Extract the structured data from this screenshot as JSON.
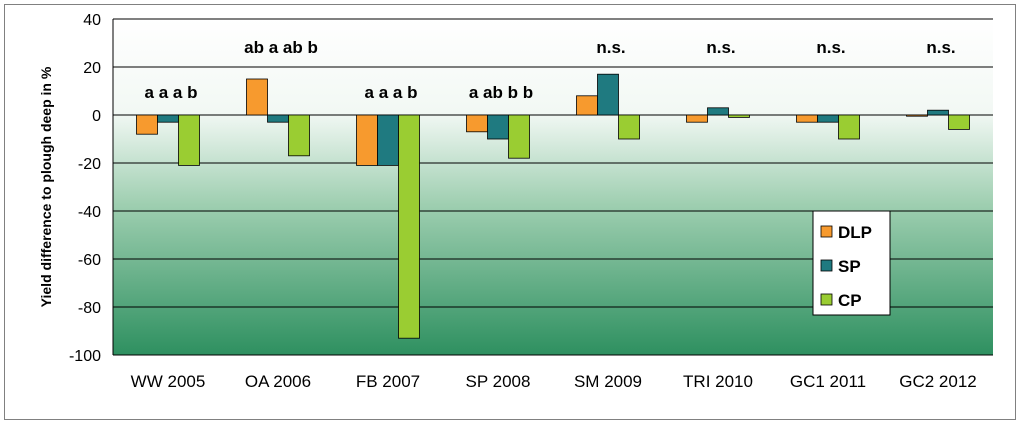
{
  "chart_data": {
    "type": "bar",
    "ylabel": "Yield difference to plough deep in %",
    "ylim": [
      -100,
      40
    ],
    "yticks": [
      40,
      20,
      0,
      -20,
      -40,
      -60,
      -80,
      -100
    ],
    "grid": true,
    "legend_position": "right",
    "categories": [
      "WW 2005",
      "OA 2006",
      "FB 2007",
      "SP 2008",
      "SM 2009",
      "TRI 2010",
      "GC1 2011",
      "GC2 2012"
    ],
    "category_crop": [
      "WW",
      "OA",
      "FB",
      "SP",
      "SM",
      "TRI",
      "GC1",
      "GC2"
    ],
    "category_year": [
      "2005",
      "2006",
      "2007",
      "2008",
      "2009",
      "2010",
      "2011",
      "2012"
    ],
    "annotations": [
      "a a a b",
      "ab a ab b",
      "a a a b",
      "a ab b b",
      "n.s.",
      "n.s.",
      "n.s.",
      "n.s."
    ],
    "series": [
      {
        "name": "DLP",
        "color": "#F79A2E",
        "values": [
          -8,
          15,
          -21,
          -7,
          8,
          -3,
          -3,
          -0.5
        ]
      },
      {
        "name": "SP",
        "color": "#1F7A80",
        "values": [
          -3,
          -3,
          -21,
          -10,
          17,
          3,
          -3,
          2
        ]
      },
      {
        "name": "CP",
        "color": "#9ACD32",
        "values": [
          -21,
          -17,
          -93,
          -18,
          -10,
          -1,
          -10,
          -6
        ]
      }
    ]
  }
}
